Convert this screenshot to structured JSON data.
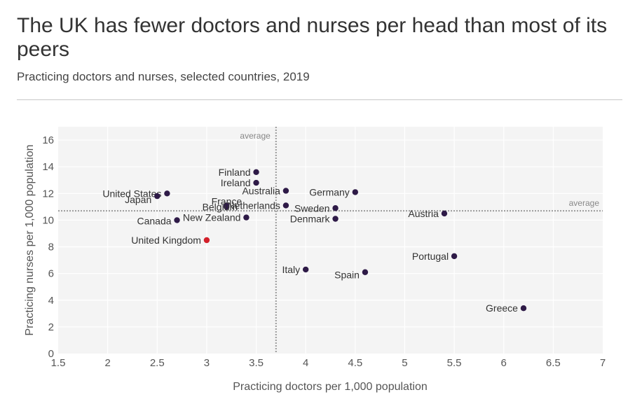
{
  "header": {
    "title": "The UK has fewer doctors and nurses per head than most of its peers",
    "subtitle": "Practicing doctors and nurses, selected countries, 2019"
  },
  "colors": {
    "point": "#2e1a47",
    "highlight": "#d3202a",
    "plot_bg": "#f4f4f4",
    "grid": "#ffffff",
    "average_line": "#9a9a9a"
  },
  "chart_data": {
    "type": "scatter",
    "xlabel": "Practicing doctors per 1,000 population",
    "ylabel": "Practicing nurses per 1,000 population",
    "xlim": [
      1.5,
      7
    ],
    "ylim": [
      0,
      17
    ],
    "x_ticks": [
      1.5,
      2,
      2.5,
      3,
      3.5,
      4,
      4.5,
      5,
      5.5,
      6,
      6.5,
      7
    ],
    "y_ticks": [
      0,
      2,
      4,
      6,
      8,
      10,
      12,
      14,
      16
    ],
    "grid": true,
    "average_x": 3.7,
    "average_y": 10.7,
    "average_label": "average",
    "points": [
      {
        "label": "Finland",
        "x": 3.5,
        "y": 13.6,
        "highlight": false
      },
      {
        "label": "Ireland",
        "x": 3.5,
        "y": 12.8,
        "highlight": false
      },
      {
        "label": "Australia",
        "x": 3.8,
        "y": 12.2,
        "highlight": false
      },
      {
        "label": "Germany",
        "x": 4.5,
        "y": 12.1,
        "highlight": false
      },
      {
        "label": "United States",
        "x": 2.6,
        "y": 12.0,
        "highlight": false
      },
      {
        "label": "Japan",
        "x": 2.5,
        "y": 11.8,
        "highlight": false
      },
      {
        "label": "Netherlands",
        "x": 3.8,
        "y": 11.1,
        "highlight": false
      },
      {
        "label": "France",
        "x": 3.2,
        "y": 11.1,
        "highlight": false
      },
      {
        "label": "Belgium",
        "x": 3.2,
        "y": 11.0,
        "highlight": false
      },
      {
        "label": "Sweden",
        "x": 4.3,
        "y": 10.9,
        "highlight": false
      },
      {
        "label": "Austria",
        "x": 5.4,
        "y": 10.5,
        "highlight": false
      },
      {
        "label": "New Zealand",
        "x": 3.4,
        "y": 10.2,
        "highlight": false
      },
      {
        "label": "Denmark",
        "x": 4.3,
        "y": 10.1,
        "highlight": false
      },
      {
        "label": "Canada",
        "x": 2.7,
        "y": 10.0,
        "highlight": false
      },
      {
        "label": "United Kingdom",
        "x": 3.0,
        "y": 8.5,
        "highlight": true
      },
      {
        "label": "Portugal",
        "x": 5.5,
        "y": 7.3,
        "highlight": false
      },
      {
        "label": "Italy",
        "x": 4.0,
        "y": 6.3,
        "highlight": false
      },
      {
        "label": "Spain",
        "x": 4.6,
        "y": 6.1,
        "highlight": false
      },
      {
        "label": "Greece",
        "x": 6.2,
        "y": 3.4,
        "highlight": false
      }
    ]
  }
}
